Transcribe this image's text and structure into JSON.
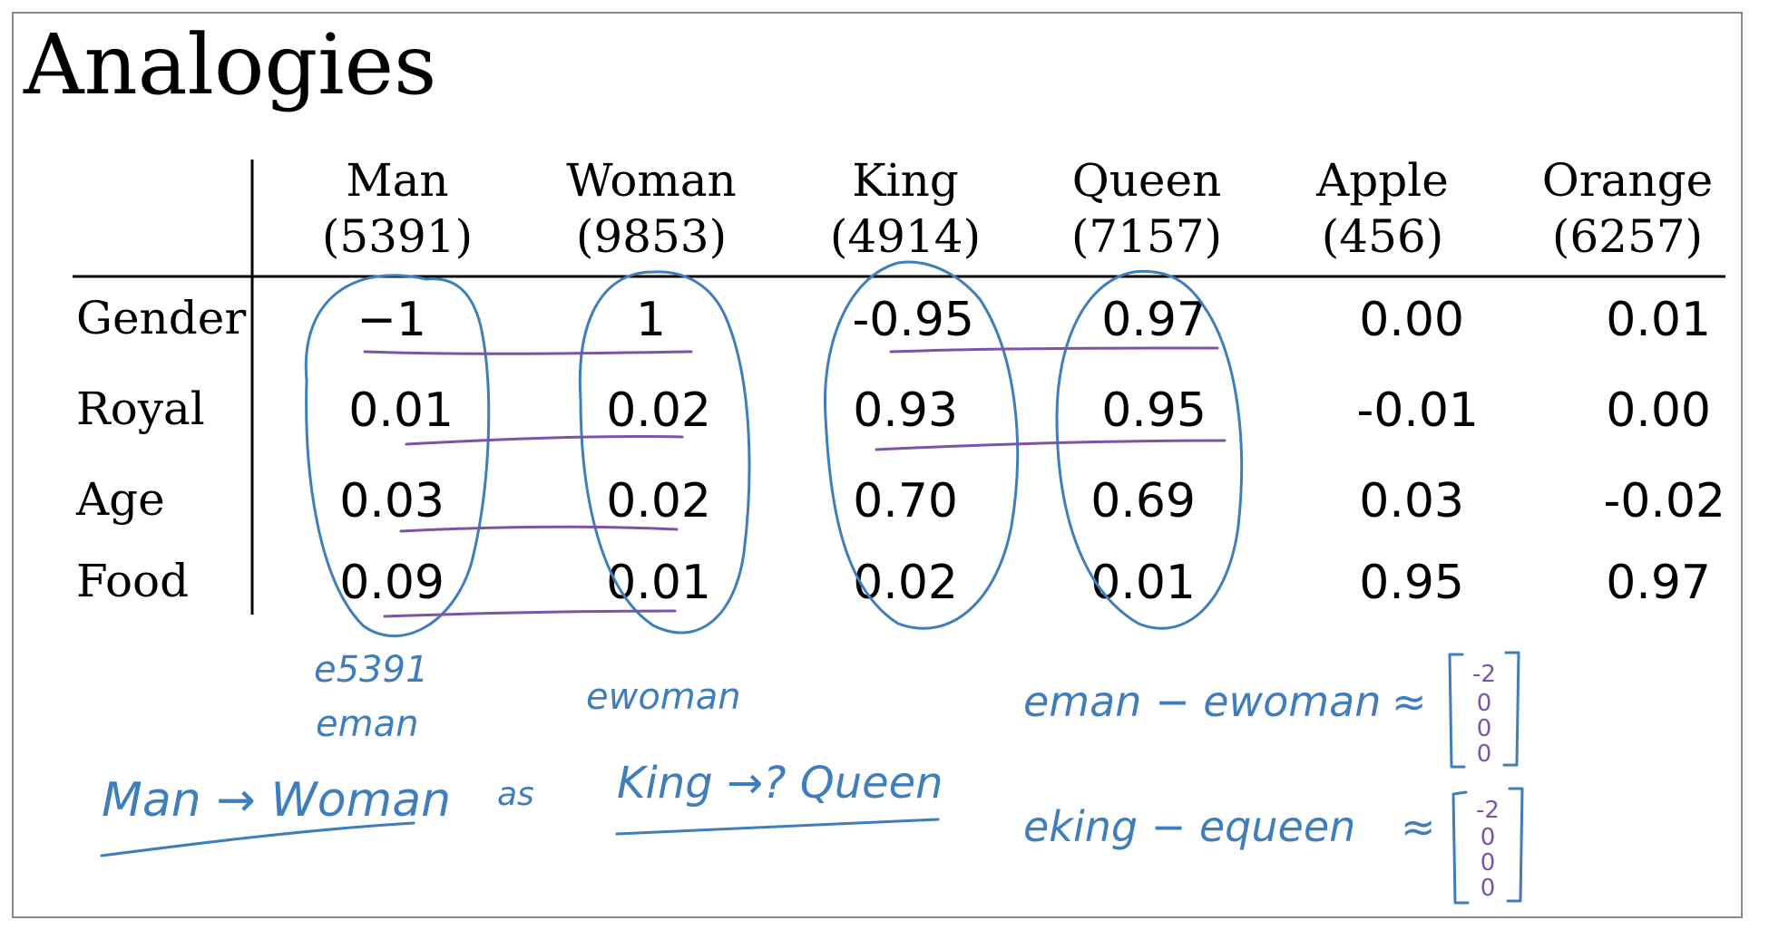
{
  "title": "Analogies",
  "columns": [
    {
      "word": "Man",
      "index": "(5391)"
    },
    {
      "word": "Woman",
      "index": "(9853)"
    },
    {
      "word": "King",
      "index": "(4914)"
    },
    {
      "word": "Queen",
      "index": "(7157)"
    },
    {
      "word": "Apple",
      "index": "(456)"
    },
    {
      "word": "Orange",
      "index": "(6257)"
    }
  ],
  "rows": [
    {
      "label": "Gender",
      "values": [
        "−1",
        "1",
        "-0.95",
        "0.97",
        "0.00",
        "0.01"
      ]
    },
    {
      "label": "Royal",
      "values": [
        "0.01",
        "0.02",
        "0.93",
        "0.95",
        "-0.01",
        "0.00"
      ]
    },
    {
      "label": "Age",
      "values": [
        "0.03",
        "0.02",
        "0.70",
        "0.69",
        "0.03",
        "-0.02"
      ]
    },
    {
      "label": "Food",
      "values": [
        "0.09",
        "0.01",
        "0.02",
        "0.01",
        "0.95",
        "0.97"
      ]
    }
  ],
  "notes": {
    "e_5391": "e5391",
    "e_man": "eman",
    "e_woman": "ewoman",
    "analogy_left": "Man → Woman",
    "analogy_as": "as",
    "analogy_right": "King →? Queen",
    "diff1_lhs": "eman − ewoman",
    "diff1_approx": "≈",
    "diff1_vector": [
      "-2",
      "0",
      "0",
      "0"
    ],
    "diff2_lhs": "eking − equeen",
    "diff2_approx": "≈",
    "diff2_vector": [
      "-2",
      "0",
      "0",
      "0"
    ]
  },
  "colors": {
    "ink_blue": "#3f7ebb",
    "ink_purple": "#7b54a8"
  }
}
